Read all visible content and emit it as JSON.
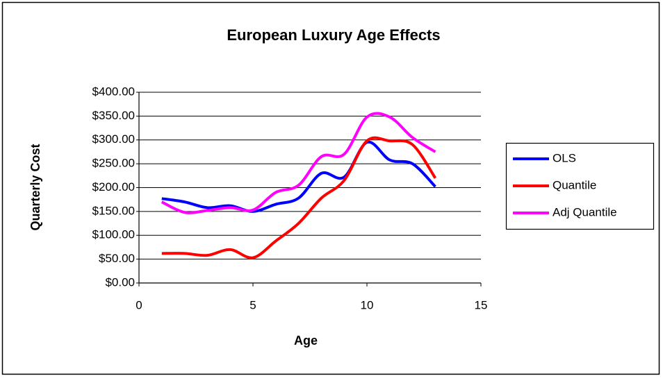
{
  "chart_data": {
    "type": "line",
    "title": "European Luxury Age Effects",
    "x_label": "Age",
    "y_label": "Quarterly Cost",
    "x": [
      1,
      2,
      3,
      4,
      5,
      6,
      7,
      8,
      9,
      10,
      11,
      12,
      13
    ],
    "series": [
      {
        "name": "OLS",
        "color": "#0000ff",
        "values": [
          177,
          170,
          158,
          162,
          150,
          165,
          178,
          230,
          222,
          295,
          258,
          250,
          202
        ]
      },
      {
        "name": "Quantile",
        "color": "#ff0000",
        "values": [
          62,
          62,
          58,
          70,
          53,
          88,
          125,
          178,
          215,
          298,
          298,
          290,
          220
        ]
      },
      {
        "name": "Adj Quantile",
        "color": "#ff00ff",
        "values": [
          170,
          148,
          152,
          158,
          153,
          190,
          205,
          265,
          270,
          348,
          348,
          305,
          275
        ]
      }
    ],
    "xlim": [
      0,
      15
    ],
    "xticks": [
      0,
      5,
      10,
      15
    ],
    "ylim": [
      0,
      400
    ],
    "yticks": [
      {
        "value": 0,
        "label": "$0.00"
      },
      {
        "value": 50,
        "label": "$50.00"
      },
      {
        "value": 100,
        "label": "$100.00"
      },
      {
        "value": 150,
        "label": "$150.00"
      },
      {
        "value": 200,
        "label": "$200.00"
      },
      {
        "value": 250,
        "label": "$250.00"
      },
      {
        "value": 300,
        "label": "$300.00"
      },
      {
        "value": 350,
        "label": "$350.00"
      },
      {
        "value": 400,
        "label": "$400.00"
      }
    ],
    "grid": true,
    "smooth": true,
    "legend": "right"
  }
}
